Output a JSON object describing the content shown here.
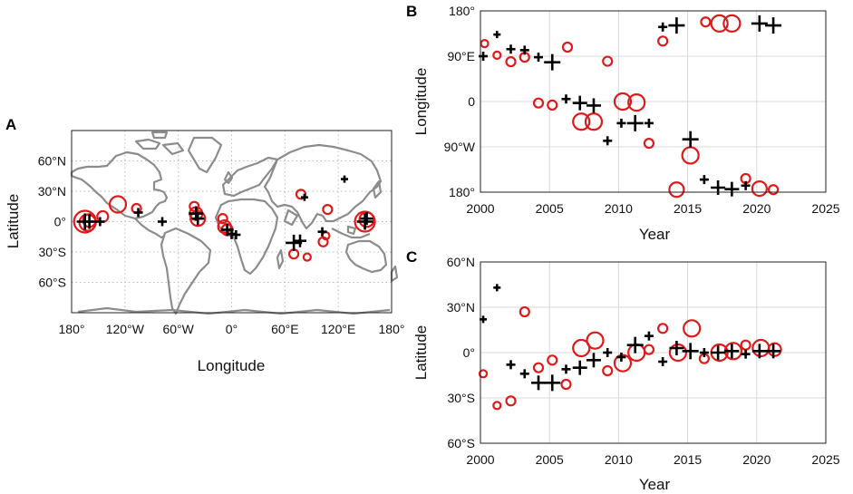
{
  "chart_data": [
    {
      "panel": "A",
      "type": "scatter",
      "title": "",
      "xlabel": "Longitude",
      "ylabel": "Latitude",
      "xlim": [
        -180,
        180
      ],
      "ylim": [
        -90,
        90
      ],
      "xticks": [
        {
          "v": -180,
          "label": "180°"
        },
        {
          "v": -120,
          "label": "120°W"
        },
        {
          "v": -60,
          "label": "60°W"
        },
        {
          "v": 0,
          "label": "0°"
        },
        {
          "v": 60,
          "label": "60°E"
        },
        {
          "v": 120,
          "label": "120°E"
        },
        {
          "v": 180,
          "label": "180°"
        }
      ],
      "yticks": [
        {
          "v": 60,
          "label": "60°N"
        },
        {
          "v": 30,
          "label": "30°N"
        },
        {
          "v": 0,
          "label": "0°"
        },
        {
          "v": -30,
          "label": "30°S"
        },
        {
          "v": -60,
          "label": "60°S"
        }
      ],
      "circles": [
        {
          "lon": -165,
          "lat": 0,
          "r": 12
        },
        {
          "lon": -162,
          "lat": -1,
          "r": 9
        },
        {
          "lon": -160,
          "lat": 1,
          "r": 7
        },
        {
          "lon": -145,
          "lat": 5,
          "r": 6
        },
        {
          "lon": -128,
          "lat": 17,
          "r": 9
        },
        {
          "lon": -107,
          "lat": 13,
          "r": 5
        },
        {
          "lon": -42,
          "lat": 15,
          "r": 5
        },
        {
          "lon": -40,
          "lat": 8,
          "r": 7
        },
        {
          "lon": -38,
          "lat": 3,
          "r": 8
        },
        {
          "lon": -10,
          "lat": 3,
          "r": 5
        },
        {
          "lon": -8,
          "lat": -5,
          "r": 7
        },
        {
          "lon": -5,
          "lat": -8,
          "r": 6
        },
        {
          "lon": 70,
          "lat": -32,
          "r": 5
        },
        {
          "lon": 78,
          "lat": 27,
          "r": 5
        },
        {
          "lon": 85,
          "lat": -35,
          "r": 4
        },
        {
          "lon": 103,
          "lat": -20,
          "r": 5
        },
        {
          "lon": 108,
          "lat": 12,
          "r": 5
        },
        {
          "lon": 106,
          "lat": -14,
          "r": 4
        },
        {
          "lon": 150,
          "lat": 0,
          "r": 11
        },
        {
          "lon": 152,
          "lat": 2,
          "r": 8
        }
      ],
      "crosses": [
        {
          "lon": -165,
          "lat": 0,
          "s": 9
        },
        {
          "lon": -160,
          "lat": 0,
          "s": 8
        },
        {
          "lon": -148,
          "lat": 0,
          "s": 5
        },
        {
          "lon": -105,
          "lat": 9,
          "s": 5
        },
        {
          "lon": -78,
          "lat": 0,
          "s": 5
        },
        {
          "lon": -40,
          "lat": 8,
          "s": 8
        },
        {
          "lon": -38,
          "lat": 3,
          "s": 7
        },
        {
          "lon": -5,
          "lat": -8,
          "s": 7
        },
        {
          "lon": 0,
          "lat": -12,
          "s": 6
        },
        {
          "lon": 5,
          "lat": -13,
          "s": 5
        },
        {
          "lon": 70,
          "lat": -21,
          "s": 9
        },
        {
          "lon": 77,
          "lat": -19,
          "s": 7
        },
        {
          "lon": 82,
          "lat": 24,
          "s": 4
        },
        {
          "lon": 102,
          "lat": -10,
          "s": 5
        },
        {
          "lon": 127,
          "lat": 42,
          "s": 4
        },
        {
          "lon": 150,
          "lat": 0,
          "s": 9
        },
        {
          "lon": 152,
          "lat": 3,
          "s": 7
        }
      ]
    },
    {
      "panel": "B",
      "type": "scatter",
      "xlabel": "Year",
      "ylabel": "Longitude",
      "xlim": [
        2000,
        2025
      ],
      "ylim": [
        -180,
        180
      ],
      "xticks": [
        {
          "v": 2000,
          "label": "2000"
        },
        {
          "v": 2005,
          "label": "2005"
        },
        {
          "v": 2010,
          "label": "2010"
        },
        {
          "v": 2015,
          "label": "2015"
        },
        {
          "v": 2020,
          "label": "2020"
        },
        {
          "v": 2025,
          "label": "2025"
        }
      ],
      "yticks": [
        {
          "v": 180,
          "label": "180°"
        },
        {
          "v": 90,
          "label": "90°E"
        },
        {
          "v": 0,
          "label": "0"
        },
        {
          "v": -90,
          "label": "90°W"
        },
        {
          "v": -180,
          "label": "180°"
        }
      ],
      "circles": [
        {
          "x": 2000.3,
          "y": 115,
          "r": 4
        },
        {
          "x": 2001.2,
          "y": 92,
          "r": 4
        },
        {
          "x": 2002.2,
          "y": 79,
          "r": 5
        },
        {
          "x": 2003.2,
          "y": 88,
          "r": 5
        },
        {
          "x": 2004.2,
          "y": -3,
          "r": 5
        },
        {
          "x": 2005.2,
          "y": -7,
          "r": 5
        },
        {
          "x": 2006.3,
          "y": 108,
          "r": 5
        },
        {
          "x": 2007.3,
          "y": -40,
          "r": 9
        },
        {
          "x": 2008.2,
          "y": -40,
          "r": 9
        },
        {
          "x": 2009.2,
          "y": 80,
          "r": 5
        },
        {
          "x": 2010.3,
          "y": 0,
          "r": 9
        },
        {
          "x": 2011.3,
          "y": -2,
          "r": 9
        },
        {
          "x": 2012.2,
          "y": -83,
          "r": 5
        },
        {
          "x": 2013.2,
          "y": 120,
          "r": 5
        },
        {
          "x": 2014.2,
          "y": -175,
          "r": 8
        },
        {
          "x": 2015.2,
          "y": -107,
          "r": 9
        },
        {
          "x": 2016.3,
          "y": 158,
          "r": 5
        },
        {
          "x": 2017.3,
          "y": 155,
          "r": 9
        },
        {
          "x": 2018.2,
          "y": 155,
          "r": 9
        },
        {
          "x": 2019.2,
          "y": -153,
          "r": 5
        },
        {
          "x": 2020.2,
          "y": -173,
          "r": 8
        },
        {
          "x": 2021.2,
          "y": -175,
          "r": 5
        }
      ],
      "crosses": [
        {
          "x": 2000.2,
          "y": 90,
          "s": 5
        },
        {
          "x": 2001.2,
          "y": 133,
          "s": 4
        },
        {
          "x": 2002.2,
          "y": 104,
          "s": 5
        },
        {
          "x": 2003.2,
          "y": 102,
          "s": 5
        },
        {
          "x": 2004.2,
          "y": 88,
          "s": 5
        },
        {
          "x": 2005.2,
          "y": 78,
          "s": 9
        },
        {
          "x": 2006.2,
          "y": 5,
          "s": 5
        },
        {
          "x": 2007.2,
          "y": -3,
          "s": 8
        },
        {
          "x": 2008.2,
          "y": -8,
          "s": 8
        },
        {
          "x": 2009.2,
          "y": -78,
          "s": 5
        },
        {
          "x": 2010.2,
          "y": -43,
          "s": 5
        },
        {
          "x": 2011.2,
          "y": -43,
          "s": 9
        },
        {
          "x": 2012.2,
          "y": -43,
          "s": 5
        },
        {
          "x": 2013.2,
          "y": 148,
          "s": 5
        },
        {
          "x": 2014.2,
          "y": 151,
          "s": 9
        },
        {
          "x": 2015.2,
          "y": -75,
          "s": 9
        },
        {
          "x": 2016.2,
          "y": -155,
          "s": 5
        },
        {
          "x": 2017.2,
          "y": -171,
          "s": 8
        },
        {
          "x": 2018.2,
          "y": -174,
          "s": 8
        },
        {
          "x": 2019.2,
          "y": -167,
          "s": 5
        },
        {
          "x": 2020.2,
          "y": 155,
          "s": 9
        },
        {
          "x": 2021.2,
          "y": 151,
          "s": 9
        }
      ]
    },
    {
      "panel": "C",
      "type": "scatter",
      "xlabel": "Year",
      "ylabel": "Latitude",
      "xlim": [
        2000,
        2025
      ],
      "ylim": [
        -60,
        60
      ],
      "xticks": [
        {
          "v": 2000,
          "label": "2000"
        },
        {
          "v": 2005,
          "label": "2005"
        },
        {
          "v": 2010,
          "label": "2010"
        },
        {
          "v": 2015,
          "label": "2015"
        },
        {
          "v": 2020,
          "label": "2020"
        },
        {
          "v": 2025,
          "label": "2025"
        }
      ],
      "yticks": [
        {
          "v": 60,
          "label": "60°N"
        },
        {
          "v": 30,
          "label": "30°N"
        },
        {
          "v": 0,
          "label": "0°"
        },
        {
          "v": -30,
          "label": "30°S"
        },
        {
          "v": -60,
          "label": "60°S"
        }
      ],
      "circles": [
        {
          "x": 2000.2,
          "y": -14,
          "r": 4
        },
        {
          "x": 2001.2,
          "y": -35,
          "r": 4
        },
        {
          "x": 2002.2,
          "y": -32,
          "r": 5
        },
        {
          "x": 2003.2,
          "y": 27,
          "r": 5
        },
        {
          "x": 2004.2,
          "y": -10,
          "r": 5
        },
        {
          "x": 2005.2,
          "y": -5,
          "r": 5
        },
        {
          "x": 2006.2,
          "y": -21,
          "r": 5
        },
        {
          "x": 2007.3,
          "y": 3,
          "r": 9
        },
        {
          "x": 2008.3,
          "y": 8,
          "r": 9
        },
        {
          "x": 2009.2,
          "y": -12,
          "r": 5
        },
        {
          "x": 2010.3,
          "y": -7,
          "r": 9
        },
        {
          "x": 2011.3,
          "y": 0,
          "r": 9
        },
        {
          "x": 2012.2,
          "y": 2,
          "r": 5
        },
        {
          "x": 2013.2,
          "y": 16,
          "r": 5
        },
        {
          "x": 2014.3,
          "y": 0,
          "r": 9
        },
        {
          "x": 2015.3,
          "y": 16,
          "r": 9
        },
        {
          "x": 2016.2,
          "y": -4,
          "r": 5
        },
        {
          "x": 2017.3,
          "y": 0,
          "r": 9
        },
        {
          "x": 2018.3,
          "y": 1,
          "r": 9
        },
        {
          "x": 2019.2,
          "y": 5,
          "r": 5
        },
        {
          "x": 2020.3,
          "y": 3,
          "r": 9
        },
        {
          "x": 2021.3,
          "y": 2,
          "r": 7
        }
      ],
      "crosses": [
        {
          "x": 2000.2,
          "y": 22,
          "s": 4
        },
        {
          "x": 2001.2,
          "y": 43,
          "s": 4
        },
        {
          "x": 2002.2,
          "y": -8,
          "s": 5
        },
        {
          "x": 2003.2,
          "y": -14,
          "s": 5
        },
        {
          "x": 2004.2,
          "y": -20,
          "s": 8
        },
        {
          "x": 2005.2,
          "y": -20,
          "s": 9
        },
        {
          "x": 2006.2,
          "y": -11,
          "s": 5
        },
        {
          "x": 2007.2,
          "y": -10,
          "s": 8
        },
        {
          "x": 2008.2,
          "y": -5,
          "s": 8
        },
        {
          "x": 2009.2,
          "y": 0,
          "s": 5
        },
        {
          "x": 2010.2,
          "y": -3,
          "s": 5
        },
        {
          "x": 2011.2,
          "y": 5,
          "s": 9
        },
        {
          "x": 2012.2,
          "y": 11,
          "s": 5
        },
        {
          "x": 2013.2,
          "y": -6,
          "s": 5
        },
        {
          "x": 2014.2,
          "y": 3,
          "s": 8
        },
        {
          "x": 2015.2,
          "y": 1,
          "s": 9
        },
        {
          "x": 2016.2,
          "y": 0,
          "s": 5
        },
        {
          "x": 2017.2,
          "y": 0,
          "s": 8
        },
        {
          "x": 2018.2,
          "y": 1,
          "s": 8
        },
        {
          "x": 2019.2,
          "y": -1,
          "s": 5
        },
        {
          "x": 2020.2,
          "y": 1,
          "s": 8
        },
        {
          "x": 2021.2,
          "y": 1,
          "s": 8
        }
      ]
    }
  ]
}
